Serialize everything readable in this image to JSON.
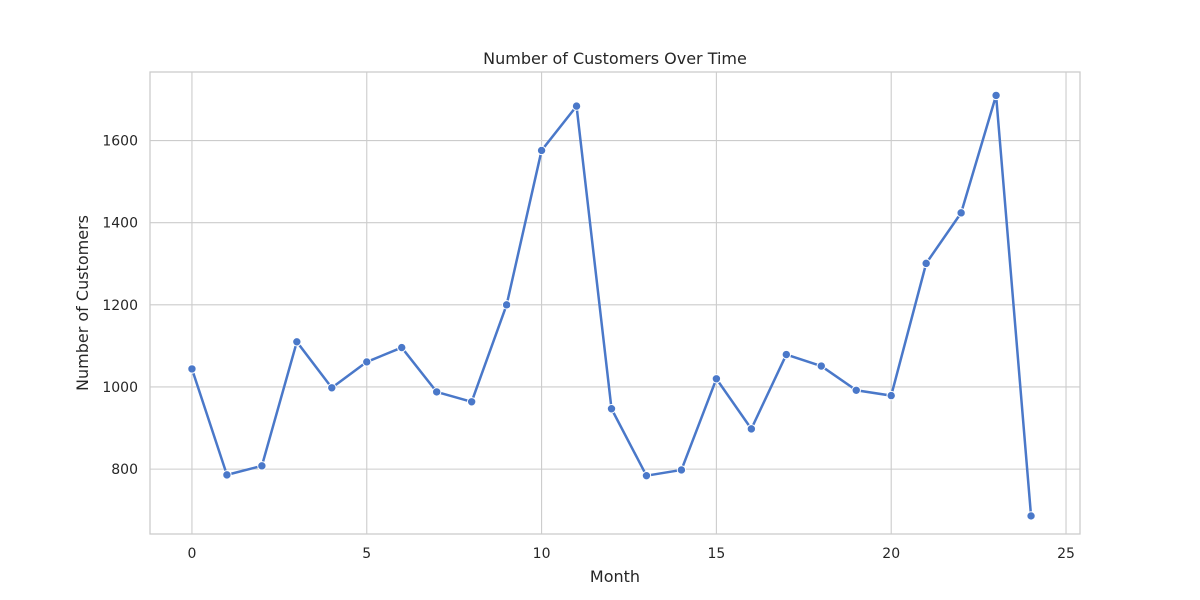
{
  "chart_data": {
    "type": "line",
    "title": "Number of Customers Over Time",
    "xlabel": "Month",
    "ylabel": "Number of Customers",
    "xlim": [
      -1.2,
      25.4
    ],
    "ylim": [
      642,
      1767
    ],
    "xticks": [
      0,
      5,
      10,
      15,
      20,
      25
    ],
    "yticks": [
      800,
      1000,
      1200,
      1400,
      1600
    ],
    "grid": true,
    "legend": "none",
    "series": [
      {
        "name": "Number of Customers",
        "color": "#4a78c9",
        "marker": "circle",
        "x": [
          0,
          1,
          2,
          3,
          4,
          5,
          6,
          7,
          8,
          9,
          10,
          11,
          12,
          13,
          14,
          15,
          16,
          17,
          18,
          19,
          20,
          21,
          22,
          23,
          24
        ],
        "y": [
          1044,
          786,
          808,
          1110,
          998,
          1061,
          1096,
          988,
          964,
          1200,
          1576,
          1684,
          947,
          784,
          798,
          1020,
          898,
          1079,
          1051,
          992,
          979,
          1301,
          1424,
          1710,
          686
        ]
      }
    ]
  },
  "colors": {
    "grid": "#cccccc",
    "text": "#262626",
    "line": "#4a78c9",
    "marker_edge": "#ffffff"
  }
}
